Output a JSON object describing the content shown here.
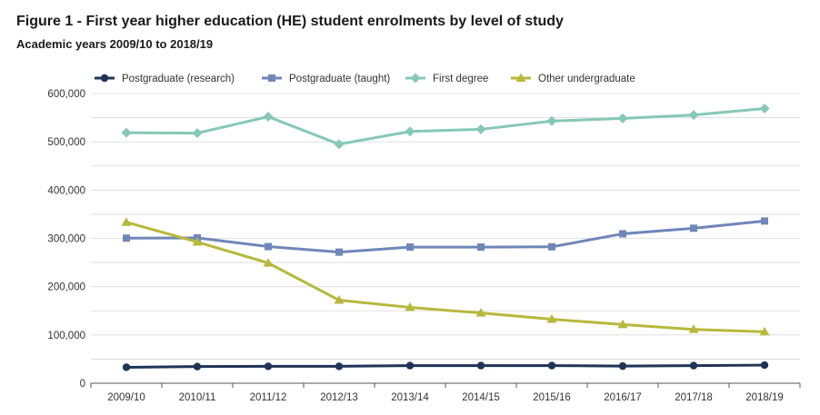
{
  "chart_data": {
    "type": "line",
    "title": "Figure 1 - First year higher education (HE) student enrolments by level of study",
    "subtitle": "Academic years 2009/10 to 2018/19",
    "xlabel": "",
    "ylabel": "",
    "ylim": [
      0,
      600000
    ],
    "yticks": [
      0,
      100000,
      200000,
      300000,
      400000,
      500000,
      600000
    ],
    "ytick_labels": [
      "0",
      "100,000",
      "200,000",
      "300,000",
      "400,000",
      "500,000",
      "600,000"
    ],
    "grid": true,
    "legend_position": "top-left",
    "categories": [
      "2009/10",
      "2010/11",
      "2011/12",
      "2012/13",
      "2013/14",
      "2014/15",
      "2015/16",
      "2016/17",
      "2017/18",
      "2018/19"
    ],
    "series": [
      {
        "name": "Postgraduate (research)",
        "marker": "circle",
        "color": "#1f3456",
        "values": [
          33000,
          34500,
          35000,
          35000,
          36500,
          36500,
          36500,
          35500,
          36500,
          37500
        ]
      },
      {
        "name": "Postgraduate (taught)",
        "marker": "square",
        "color": "#6f86b8",
        "values": [
          300500,
          301000,
          283000,
          271500,
          282000,
          282000,
          282500,
          309500,
          321000,
          336000
        ]
      },
      {
        "name": "First degree",
        "marker": "diamond",
        "color": "#86c8b8",
        "values": [
          519000,
          518000,
          552000,
          495000,
          521500,
          526000,
          543000,
          548500,
          555500,
          569000
        ]
      },
      {
        "name": "Other undergraduate",
        "marker": "triangle",
        "color": "#b8b83c",
        "values": [
          333500,
          292500,
          249000,
          172000,
          157000,
          145500,
          132500,
          121500,
          111500,
          106500
        ]
      }
    ]
  }
}
